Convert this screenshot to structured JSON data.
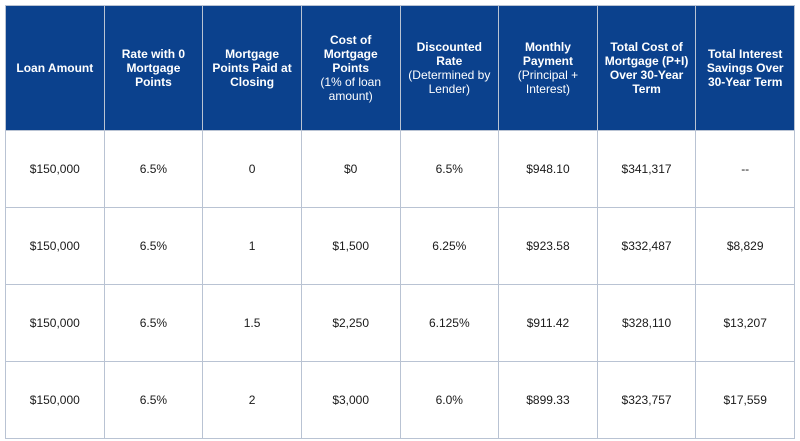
{
  "table": {
    "header": [
      {
        "title": "Loan Amount"
      },
      {
        "title": "Rate with 0 Mortgage Points"
      },
      {
        "title": "Mortgage Points Paid at Closing"
      },
      {
        "title": "Cost of Mortgage Points",
        "note": "(1% of loan amount)"
      },
      {
        "title": "Discounted Rate",
        "note": "(Determined by Lender)"
      },
      {
        "title": "Monthly Payment",
        "note": "(Principal + Interest)"
      },
      {
        "title": "Total Cost of Mortgage (P+I) Over 30-Year Term"
      },
      {
        "title": "Total Interest Savings Over 30-Year Term"
      }
    ],
    "rows": [
      [
        "$150,000",
        "6.5%",
        "0",
        "$0",
        "6.5%",
        "$948.10",
        "$341,317",
        "--"
      ],
      [
        "$150,000",
        "6.5%",
        "1",
        "$1,500",
        "6.25%",
        "$923.58",
        "$332,487",
        "$8,829"
      ],
      [
        "$150,000",
        "6.5%",
        "1.5",
        "$2,250",
        "6.125%",
        "$911.42",
        "$328,110",
        "$13,207"
      ],
      [
        "$150,000",
        "6.5%",
        "2",
        "$3,000",
        "6.0%",
        "$899.33",
        "$323,757",
        "$17,559"
      ]
    ]
  }
}
